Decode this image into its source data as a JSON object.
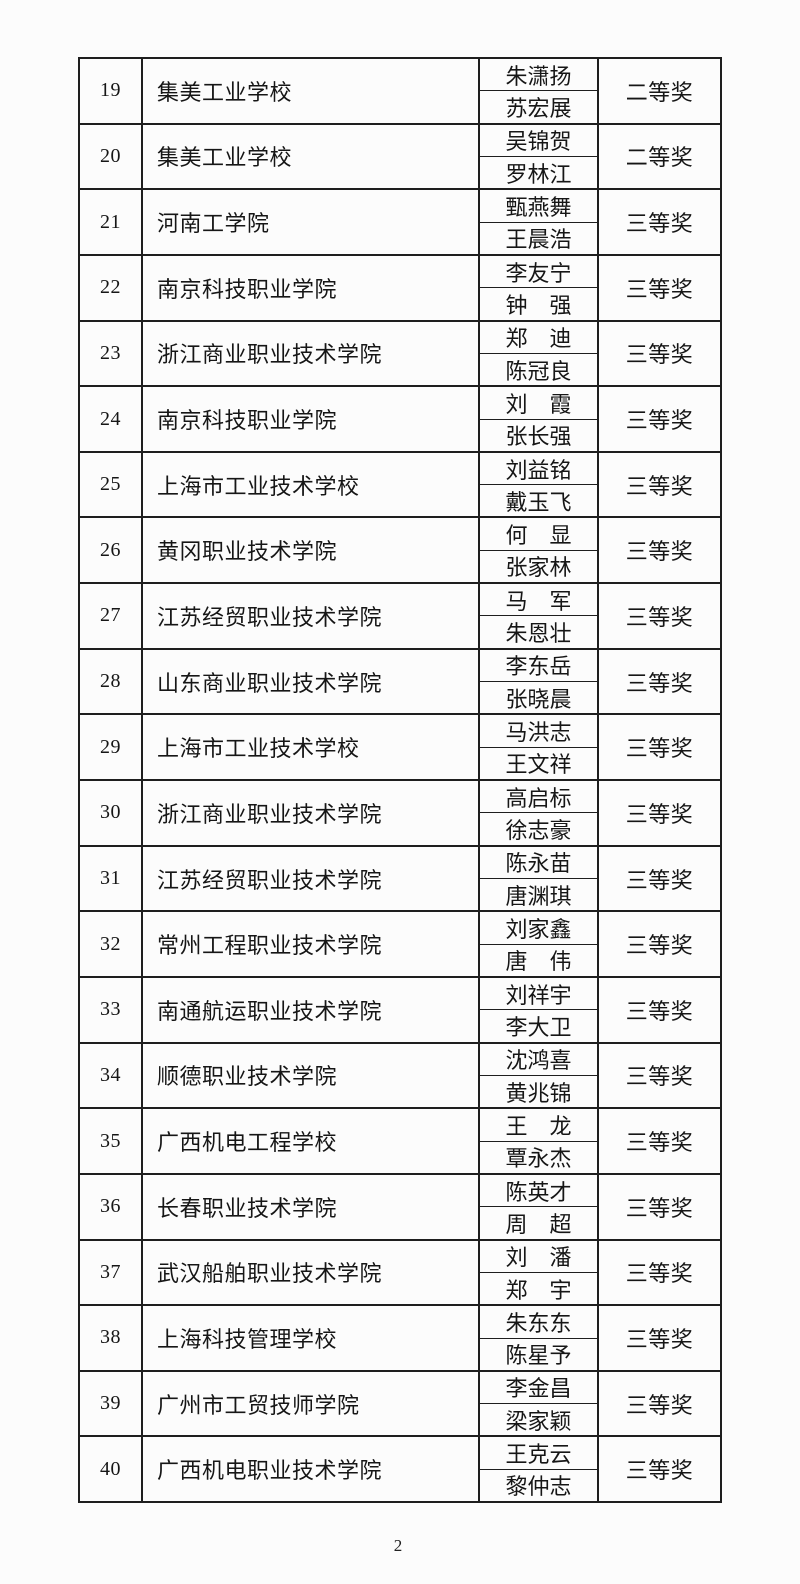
{
  "page": {
    "number": "2"
  },
  "table": {
    "rows": [
      {
        "num": "19",
        "school": "集美工业学校",
        "member1": "朱潇扬",
        "member2": "苏宏展",
        "award": "二等奖"
      },
      {
        "num": "20",
        "school": "集美工业学校",
        "member1": "吴锦贺",
        "member2": "罗林江",
        "award": "二等奖"
      },
      {
        "num": "21",
        "school": "河南工学院",
        "member1": "甄燕舞",
        "member2": "王晨浩",
        "award": "三等奖"
      },
      {
        "num": "22",
        "school": "南京科技职业学院",
        "member1": "李友宁",
        "member2": "钟　强",
        "award": "三等奖"
      },
      {
        "num": "23",
        "school": "浙江商业职业技术学院",
        "member1": "郑　迪",
        "member2": "陈冠良",
        "award": "三等奖"
      },
      {
        "num": "24",
        "school": "南京科技职业学院",
        "member1": "刘　霞",
        "member2": "张长强",
        "award": "三等奖"
      },
      {
        "num": "25",
        "school": "上海市工业技术学校",
        "member1": "刘益铭",
        "member2": "戴玉飞",
        "award": "三等奖"
      },
      {
        "num": "26",
        "school": "黄冈职业技术学院",
        "member1": "何　显",
        "member2": "张家林",
        "award": "三等奖"
      },
      {
        "num": "27",
        "school": "江苏经贸职业技术学院",
        "member1": "马　军",
        "member2": "朱恩壮",
        "award": "三等奖"
      },
      {
        "num": "28",
        "school": "山东商业职业技术学院",
        "member1": "李东岳",
        "member2": "张晓晨",
        "award": "三等奖"
      },
      {
        "num": "29",
        "school": "上海市工业技术学校",
        "member1": "马洪志",
        "member2": "王文祥",
        "award": "三等奖"
      },
      {
        "num": "30",
        "school": "浙江商业职业技术学院",
        "member1": "高启标",
        "member2": "徐志豪",
        "award": "三等奖"
      },
      {
        "num": "31",
        "school": "江苏经贸职业技术学院",
        "member1": "陈永苗",
        "member2": "唐渊琪",
        "award": "三等奖"
      },
      {
        "num": "32",
        "school": "常州工程职业技术学院",
        "member1": "刘家鑫",
        "member2": "唐　伟",
        "award": "三等奖"
      },
      {
        "num": "33",
        "school": "南通航运职业技术学院",
        "member1": "刘祥宇",
        "member2": "李大卫",
        "award": "三等奖"
      },
      {
        "num": "34",
        "school": "顺德职业技术学院",
        "member1": "沈鸿喜",
        "member2": "黄兆锦",
        "award": "三等奖"
      },
      {
        "num": "35",
        "school": "广西机电工程学校",
        "member1": "王　龙",
        "member2": "覃永杰",
        "award": "三等奖"
      },
      {
        "num": "36",
        "school": "长春职业技术学院",
        "member1": "陈英才",
        "member2": "周　超",
        "award": "三等奖"
      },
      {
        "num": "37",
        "school": "武汉船舶职业技术学院",
        "member1": "刘　潘",
        "member2": "郑　宇",
        "award": "三等奖"
      },
      {
        "num": "38",
        "school": "上海科技管理学校",
        "member1": "朱东东",
        "member2": "陈星予",
        "award": "三等奖"
      },
      {
        "num": "39",
        "school": "广州市工贸技师学院",
        "member1": "李金昌",
        "member2": "梁家颖",
        "award": "三等奖"
      },
      {
        "num": "40",
        "school": "广西机电职业技术学院",
        "member1": "王克云",
        "member2": "黎仲志",
        "award": "三等奖"
      }
    ]
  }
}
